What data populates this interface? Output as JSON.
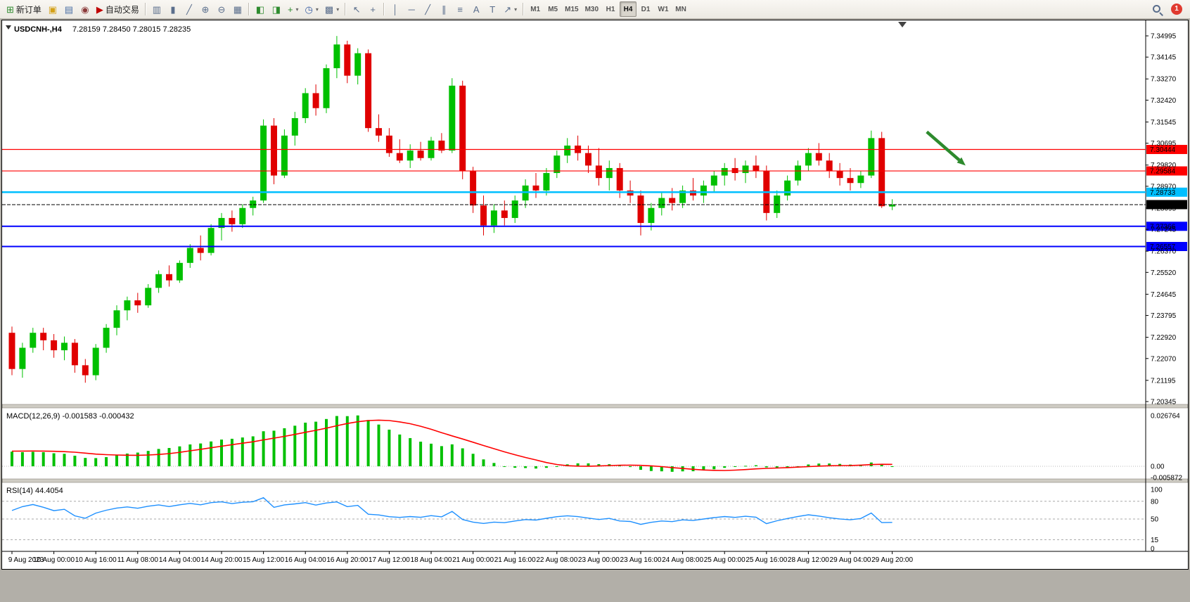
{
  "window": {
    "symbol_period": "USDCNH-,H4",
    "ohlc_line": "7.28159 7.28450 7.28015 7.28235"
  },
  "toolbar": {
    "buttons": [
      {
        "name": "new-order-button",
        "icon": "new-order",
        "glyph": "⊞",
        "glyph_color": "#2e8b2e",
        "label": "新订单"
      },
      {
        "name": "mql5-community-button",
        "icon": "coin",
        "glyph": "▣",
        "glyph_color": "#d4a017"
      },
      {
        "name": "data-window-button",
        "icon": "list",
        "glyph": "▤",
        "glyph_color": "#4a6fa5"
      },
      {
        "name": "web-terminal-button",
        "icon": "globe",
        "glyph": "◉",
        "glyph_color": "#8b3a3a"
      },
      {
        "name": "auto-trading-button",
        "icon": "play",
        "glyph": "▶",
        "glyph_color": "#c00000",
        "label": "自动交易"
      },
      {
        "sep": true
      },
      {
        "name": "bar-chart-button",
        "icon": "bar-chart",
        "glyph": "▥"
      },
      {
        "name": "candlestick-chart-button",
        "icon": "candlestick",
        "glyph": "▮"
      },
      {
        "name": "line-chart-button",
        "icon": "line-chart",
        "glyph": "╱"
      },
      {
        "name": "zoom-in-button",
        "icon": "zoom-in",
        "glyph": "⊕"
      },
      {
        "name": "zoom-out-button",
        "icon": "zoom-out",
        "glyph": "⊖"
      },
      {
        "name": "tile-windows-button",
        "icon": "tile-windows",
        "glyph": "▦"
      },
      {
        "sep": true
      },
      {
        "name": "auto-scroll-button",
        "icon": "auto-scroll",
        "glyph": "◧",
        "glyph_color": "#2e8b2e"
      },
      {
        "name": "chart-shift-button",
        "icon": "chart-shift",
        "glyph": "◨",
        "glyph_color": "#2e8b2e"
      },
      {
        "name": "indicators-button",
        "icon": "indicator-plus",
        "glyph": "+",
        "glyph_color": "#2e8b2e",
        "dropdown": true
      },
      {
        "name": "periods-button",
        "icon": "clock",
        "glyph": "◷",
        "glyph_color": "#3a5fa5",
        "dropdown": true
      },
      {
        "name": "templates-button",
        "icon": "template",
        "glyph": "▩",
        "dropdown": true
      },
      {
        "sep": true
      },
      {
        "name": "cursor-button",
        "icon": "cursor-arrow",
        "glyph": "↖"
      },
      {
        "name": "crosshair-button",
        "icon": "crosshair",
        "glyph": "+"
      },
      {
        "sep": true
      },
      {
        "name": "vertical-line-button",
        "icon": "vertical-line",
        "glyph": "│"
      },
      {
        "name": "horizontal-line-button",
        "icon": "horizontal-line",
        "glyph": "─"
      },
      {
        "name": "trendline-button",
        "icon": "trendline",
        "glyph": "╱"
      },
      {
        "name": "channel-button",
        "icon": "channel",
        "glyph": "∥"
      },
      {
        "name": "fibonacci-button",
        "icon": "fibonacci",
        "glyph": "≡"
      },
      {
        "name": "text-button",
        "icon": "text",
        "glyph": "A"
      },
      {
        "name": "text-label-button",
        "icon": "text-label",
        "glyph": "T"
      },
      {
        "name": "arrows-button",
        "icon": "arrow-object",
        "glyph": "↗",
        "dropdown": true
      },
      {
        "sep": true
      }
    ],
    "timeframes": [
      "M1",
      "M5",
      "M15",
      "M30",
      "H1",
      "H4",
      "D1",
      "W1",
      "MN"
    ],
    "active_timeframe": "H4",
    "notification_badge": "1"
  },
  "chart_data": {
    "type": "candlestick",
    "symbol": "USDCNH-",
    "timeframe": "H4",
    "ohlc_current": {
      "open": 7.28159,
      "high": 7.2845,
      "low": 7.28015,
      "close": 7.28235
    },
    "bull_color": "#00C000",
    "bear_color": "#E00000",
    "y_range": [
      7.20345,
      7.34995
    ],
    "y_axis_labels": [
      "7.34995",
      "7.34145",
      "7.33270",
      "7.32420",
      "7.31545",
      "7.30695",
      "7.29820",
      "7.28970",
      "7.28095",
      "7.27245",
      "7.26370",
      "7.25520",
      "7.24645",
      "7.23795",
      "7.22920",
      "7.22070",
      "7.21195",
      "7.20345"
    ],
    "x_labels": [
      "9 Aug 2023",
      "10 Aug 00:00",
      "10 Aug 16:00",
      "11 Aug 08:00",
      "14 Aug 04:00",
      "14 Aug 20:00",
      "15 Aug 12:00",
      "16 Aug 04:00",
      "16 Aug 20:00",
      "17 Aug 12:00",
      "18 Aug 04:00",
      "21 Aug 00:00",
      "21 Aug 16:00",
      "22 Aug 08:00",
      "23 Aug 00:00",
      "23 Aug 16:00",
      "24 Aug 08:00",
      "25 Aug 00:00",
      "25 Aug 16:00",
      "28 Aug 12:00",
      "29 Aug 04:00",
      "29 Aug 20:00"
    ],
    "x_label_every_n_bars": 4,
    "candles_ohlc": [
      [
        7.231,
        7.2335,
        7.214,
        7.2165
      ],
      [
        7.2165,
        7.227,
        7.213,
        7.225
      ],
      [
        7.225,
        7.233,
        7.223,
        7.231
      ],
      [
        7.231,
        7.233,
        7.224,
        7.228
      ],
      [
        7.228,
        7.2305,
        7.221,
        7.224
      ],
      [
        7.224,
        7.2295,
        7.22,
        7.227
      ],
      [
        7.227,
        7.2285,
        7.215,
        7.218
      ],
      [
        7.218,
        7.2205,
        7.211,
        7.214
      ],
      [
        7.214,
        7.2265,
        7.212,
        7.225
      ],
      [
        7.225,
        7.2345,
        7.223,
        7.233
      ],
      [
        7.233,
        7.242,
        7.23,
        7.24
      ],
      [
        7.24,
        7.2455,
        7.236,
        7.244
      ],
      [
        7.244,
        7.247,
        7.239,
        7.242
      ],
      [
        7.242,
        7.2505,
        7.241,
        7.249
      ],
      [
        7.249,
        7.256,
        7.247,
        7.2545
      ],
      [
        7.2545,
        7.258,
        7.2495,
        7.252
      ],
      [
        7.252,
        7.26,
        7.251,
        7.259
      ],
      [
        7.259,
        7.2665,
        7.257,
        7.265
      ],
      [
        7.265,
        7.27,
        7.26,
        7.263
      ],
      [
        7.263,
        7.2745,
        7.262,
        7.273
      ],
      [
        7.273,
        7.279,
        7.268,
        7.277
      ],
      [
        7.277,
        7.28,
        7.2715,
        7.2745
      ],
      [
        7.2745,
        7.2825,
        7.273,
        7.281
      ],
      [
        7.281,
        7.2855,
        7.278,
        7.284
      ],
      [
        7.284,
        7.3165,
        7.283,
        7.314
      ],
      [
        7.314,
        7.317,
        7.2905,
        7.294
      ],
      [
        7.294,
        7.3125,
        7.293,
        7.31
      ],
      [
        7.31,
        7.3195,
        7.306,
        7.317
      ],
      [
        7.317,
        7.329,
        7.315,
        7.327
      ],
      [
        7.327,
        7.3305,
        7.318,
        7.321
      ],
      [
        7.321,
        7.3385,
        7.319,
        7.337
      ],
      [
        7.337,
        7.3499,
        7.333,
        7.3465
      ],
      [
        7.3465,
        7.348,
        7.331,
        7.334
      ],
      [
        7.334,
        7.345,
        7.3305,
        7.343
      ],
      [
        7.343,
        7.3445,
        7.3115,
        7.313
      ],
      [
        7.313,
        7.3185,
        7.3075,
        7.31
      ],
      [
        7.31,
        7.313,
        7.3015,
        7.303
      ],
      [
        7.303,
        7.3085,
        7.299,
        7.3
      ],
      [
        7.3,
        7.3065,
        7.297,
        7.304
      ],
      [
        7.304,
        7.3075,
        7.3,
        7.301
      ],
      [
        7.301,
        7.3095,
        7.3,
        7.308
      ],
      [
        7.308,
        7.311,
        7.303,
        7.304
      ],
      [
        7.304,
        7.333,
        7.303,
        7.33
      ],
      [
        7.33,
        7.332,
        7.2925,
        7.296
      ],
      [
        7.296,
        7.2975,
        7.279,
        7.282
      ],
      [
        7.282,
        7.286,
        7.27,
        7.274
      ],
      [
        7.274,
        7.2825,
        7.271,
        7.28
      ],
      [
        7.28,
        7.284,
        7.274,
        7.277
      ],
      [
        7.277,
        7.286,
        7.275,
        7.284
      ],
      [
        7.284,
        7.2925,
        7.281,
        7.29
      ],
      [
        7.29,
        7.295,
        7.285,
        7.288
      ],
      [
        7.288,
        7.297,
        7.286,
        7.295
      ],
      [
        7.295,
        7.304,
        7.293,
        7.302
      ],
      [
        7.302,
        7.309,
        7.299,
        7.306
      ],
      [
        7.306,
        7.31,
        7.3,
        7.303
      ],
      [
        7.303,
        7.306,
        7.295,
        7.298
      ],
      [
        7.298,
        7.305,
        7.29,
        7.293
      ],
      [
        7.293,
        7.3,
        7.288,
        7.297
      ],
      [
        7.297,
        7.299,
        7.285,
        7.288
      ],
      [
        7.288,
        7.292,
        7.283,
        7.286
      ],
      [
        7.286,
        7.288,
        7.27,
        7.275
      ],
      [
        7.275,
        7.283,
        7.272,
        7.281
      ],
      [
        7.281,
        7.287,
        7.278,
        7.285
      ],
      [
        7.285,
        7.289,
        7.28,
        7.283
      ],
      [
        7.283,
        7.29,
        7.281,
        7.288
      ],
      [
        7.288,
        7.293,
        7.284,
        7.286
      ],
      [
        7.286,
        7.292,
        7.283,
        7.29
      ],
      [
        7.29,
        7.296,
        7.287,
        7.294
      ],
      [
        7.294,
        7.299,
        7.29,
        7.297
      ],
      [
        7.297,
        7.301,
        7.292,
        7.295
      ],
      [
        7.295,
        7.3,
        7.291,
        7.298
      ],
      [
        7.298,
        7.302,
        7.293,
        7.296
      ],
      [
        7.296,
        7.298,
        7.276,
        7.279
      ],
      [
        7.279,
        7.288,
        7.277,
        7.286
      ],
      [
        7.286,
        7.294,
        7.284,
        7.292
      ],
      [
        7.292,
        7.3,
        7.29,
        7.298
      ],
      [
        7.298,
        7.305,
        7.296,
        7.303
      ],
      [
        7.303,
        7.307,
        7.298,
        7.3
      ],
      [
        7.3,
        7.303,
        7.293,
        7.296
      ],
      [
        7.296,
        7.299,
        7.29,
        7.293
      ],
      [
        7.293,
        7.297,
        7.288,
        7.291
      ],
      [
        7.291,
        7.296,
        7.289,
        7.294
      ],
      [
        7.294,
        7.312,
        7.293,
        7.309
      ],
      [
        7.309,
        7.3115,
        7.281,
        7.2817
      ],
      [
        7.28159,
        7.2845,
        7.28015,
        7.28235
      ]
    ],
    "prehistory_closes": [
      7.192,
      7.195,
      7.1985,
      7.201,
      7.204,
      7.207,
      7.2095,
      7.212,
      7.214,
      7.216,
      7.2175,
      7.219,
      7.2205,
      7.222,
      7.2235,
      7.225,
      7.2265,
      7.228,
      7.2295,
      7.231
    ],
    "horizontal_lines": [
      {
        "name": "resistance-line-1",
        "price": 7.30444,
        "label": "7.30444",
        "color": "#FF0000",
        "text_color": "#FFFFFF",
        "width": 1.2,
        "dashed": false
      },
      {
        "name": "resistance-line-2",
        "price": 7.29584,
        "label": "7.29584",
        "color": "#FF0000",
        "text_color": "#FFFFFF",
        "width": 1.2,
        "dashed": false
      },
      {
        "name": "pivot-line",
        "price": 7.28733,
        "label": "7.28733",
        "color": "#00BFFF",
        "text_color": "#000000",
        "width": 2.5,
        "dashed": false
      },
      {
        "name": "current-price-line",
        "price": 7.28235,
        "label": "7.28235",
        "color": "#000000",
        "text_color": "#FFFFFF",
        "width": 1,
        "dashed": true
      },
      {
        "name": "support-line-1",
        "price": 7.27366,
        "label": "7.27366",
        "color": "#0000FF",
        "text_color": "#FFFFFF",
        "width": 2,
        "dashed": false
      },
      {
        "name": "support-line-2",
        "price": 7.26557,
        "label": "7.26557",
        "color": "#0000FF",
        "text_color": "#FFFFFF",
        "width": 2,
        "dashed": false
      }
    ],
    "arrow_annotation": {
      "color": "#2d8a2d",
      "bar_start": 87.3,
      "price_start": 7.3115,
      "bar_end": 91.0,
      "price_end": 7.298
    },
    "indicators": [
      {
        "name": "MACD",
        "params": "12,26,9",
        "header": "MACD(12,26,9) -0.001583 -0.000432",
        "value_main": "-0.001583",
        "value_signal": "-0.000432",
        "axis_labels": [
          "0.026764",
          "0.00",
          "-0.005872"
        ],
        "axis_range": [
          -0.005872,
          0.026764
        ],
        "histogram_color": "#00C000",
        "signal_color": "#FF0000"
      },
      {
        "name": "RSI",
        "params": "14",
        "header": "RSI(14) 44.4054",
        "value": "44.4054",
        "axis_labels": [
          "100",
          "80",
          "50",
          "15",
          "0"
        ],
        "levels": [
          80,
          50,
          15
        ],
        "axis_range": [
          0,
          100
        ],
        "line_color": "#1E90FF"
      }
    ],
    "legend_position": "none",
    "grid": false
  }
}
